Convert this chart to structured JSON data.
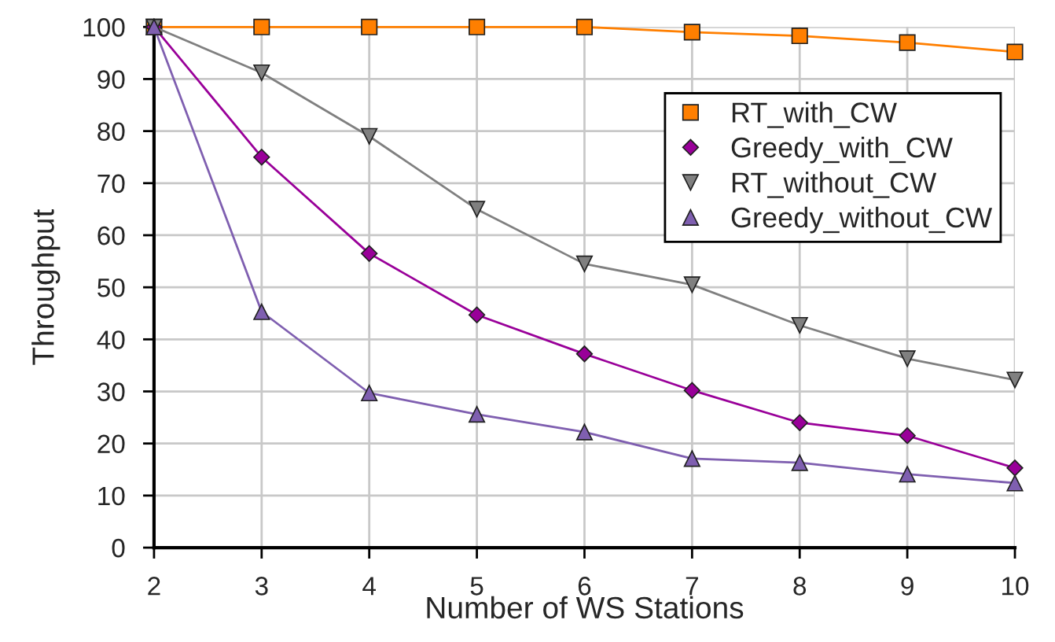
{
  "chart_data": {
    "type": "line",
    "xlabel": "Number of WS Stations",
    "ylabel": "Throughput",
    "x": [
      2,
      3,
      4,
      5,
      6,
      7,
      8,
      9,
      10
    ],
    "series": [
      {
        "name": "RT_with_CW",
        "color": "#ff7f00",
        "marker": "square",
        "values": [
          100,
          100,
          100,
          100,
          100,
          99,
          98.3,
          97,
          95.2
        ]
      },
      {
        "name": "Greedy_with_CW",
        "color": "#990099",
        "marker": "diamond",
        "values": [
          100,
          75,
          56.5,
          44.7,
          37.2,
          30.2,
          24,
          21.5,
          15.3
        ]
      },
      {
        "name": "RT_without_CW",
        "color": "#808080",
        "marker": "triangle_down",
        "values": [
          100,
          91.2,
          79,
          65,
          54.5,
          50.5,
          42.7,
          36.3,
          32.2
        ]
      },
      {
        "name": "Greedy_without_CW",
        "color": "#7f5fb0",
        "marker": "triangle",
        "values": [
          100,
          45.3,
          29.7,
          25.6,
          22.2,
          17.1,
          16.3,
          14.1,
          12.4
        ]
      }
    ],
    "xlim": [
      2,
      10
    ],
    "xticks": [
      2,
      3,
      4,
      5,
      6,
      7,
      8,
      9,
      10
    ],
    "ylim": [
      0,
      100
    ],
    "yticks": [
      0,
      10,
      20,
      30,
      40,
      50,
      60,
      70,
      80,
      90,
      100
    ],
    "grid": true,
    "legend": "top right",
    "line_style": "solid"
  }
}
